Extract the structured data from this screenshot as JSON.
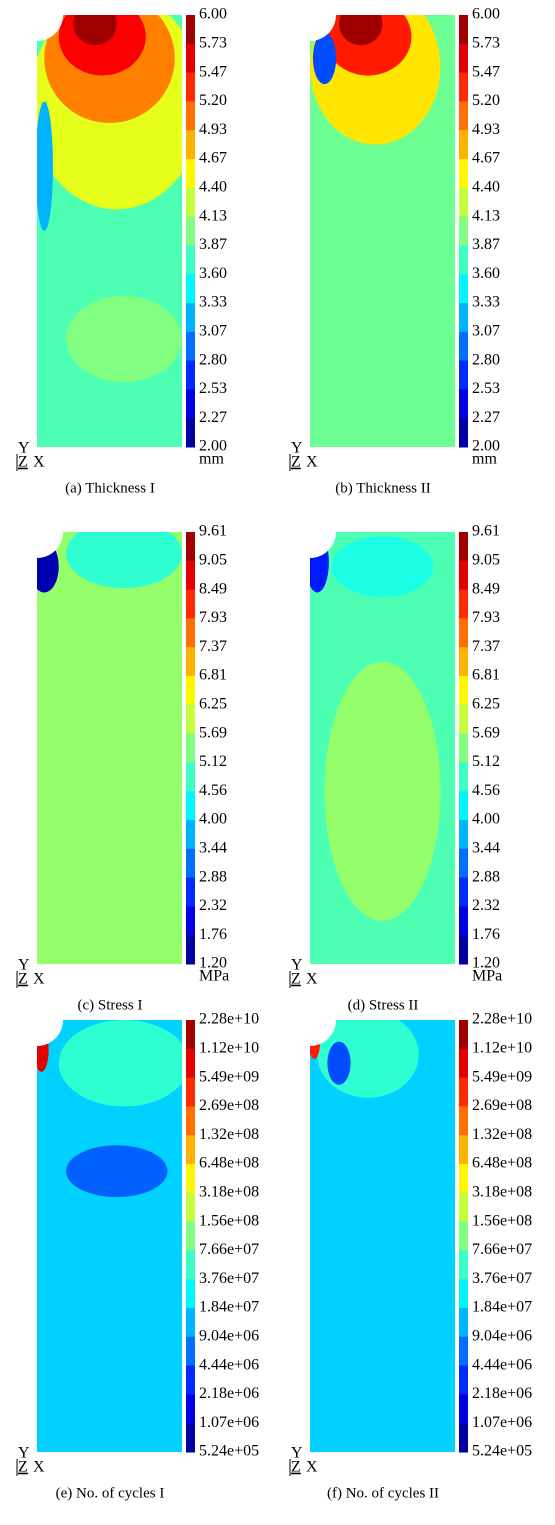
{
  "panels": [
    {
      "caption": "(a) Thickness I",
      "unit": "mm",
      "colorbar_labels": [
        "6.00",
        "5.73",
        "5.47",
        "5.20",
        "4.93",
        "4.67",
        "4.40",
        "4.13",
        "3.87",
        "3.60",
        "3.33",
        "3.07",
        "2.80",
        "2.53",
        "2.27",
        "2.00"
      ],
      "axis_labels": [
        "Y",
        "Z",
        "X"
      ]
    },
    {
      "caption": "(b) Thickness II",
      "unit": "mm",
      "colorbar_labels": [
        "6.00",
        "5.73",
        "5.47",
        "5.20",
        "4.93",
        "4.67",
        "4.40",
        "4.13",
        "3.87",
        "3.60",
        "3.33",
        "3.07",
        "2.80",
        "2.53",
        "2.27",
        "2.00"
      ],
      "axis_labels": [
        "Y",
        "Z",
        "X"
      ]
    },
    {
      "caption": "(c) Stress I",
      "unit": "MPa",
      "colorbar_labels": [
        "9.61",
        "9.05",
        "8.49",
        "7.93",
        "7.37",
        "6.81",
        "6.25",
        "5.69",
        "5.12",
        "4.56",
        "4.00",
        "3.44",
        "2.88",
        "2.32",
        "1.76",
        "1.20"
      ],
      "axis_labels": [
        "Y",
        "Z",
        "X"
      ]
    },
    {
      "caption": "(d) Stress II",
      "unit": "MPa",
      "colorbar_labels": [
        "9.61",
        "9.05",
        "8.49",
        "7.93",
        "7.37",
        "6.81",
        "6.25",
        "5.69",
        "5.12",
        "4.56",
        "4.00",
        "3.44",
        "2.88",
        "2.32",
        "1.76",
        "1.20"
      ],
      "axis_labels": [
        "Y",
        "Z",
        "X"
      ]
    },
    {
      "caption": "(e) No. of cycles I",
      "unit": null,
      "colorbar_labels": [
        "2.28e+10",
        "1.12e+10",
        "5.49e+09",
        "2.69e+08",
        "1.32e+08",
        "6.48e+08",
        "3.18e+08",
        "1.56e+08",
        "7.66e+07",
        "3.76e+07",
        "1.84e+07",
        "9.04e+06",
        "4.44e+06",
        "2.18e+06",
        "1.07e+06",
        "5.24e+05"
      ],
      "axis_labels": [
        "Y",
        "Z",
        "X"
      ]
    },
    {
      "caption": "(f) No. of cycles II",
      "unit": null,
      "colorbar_labels": [
        "2.28e+10",
        "1.12e+10",
        "5.49e+09",
        "2.69e+08",
        "1.32e+08",
        "6.48e+08",
        "3.18e+08",
        "1.56e+08",
        "7.66e+07",
        "3.76e+07",
        "1.84e+07",
        "9.04e+06",
        "4.44e+06",
        "2.18e+06",
        "1.07e+06",
        "5.24e+05"
      ],
      "axis_labels": [
        "Y",
        "Z",
        "X"
      ]
    }
  ]
}
